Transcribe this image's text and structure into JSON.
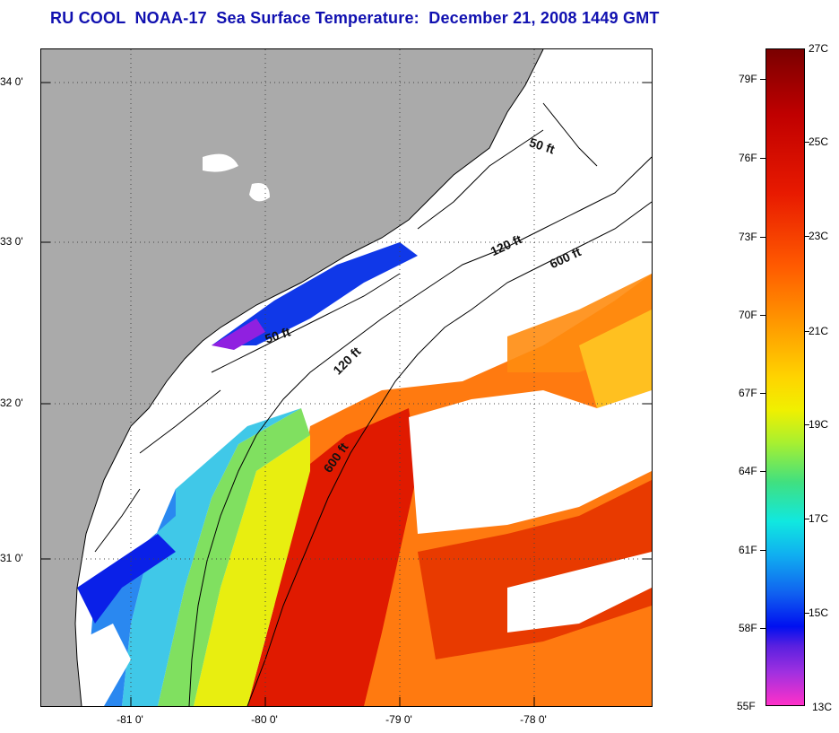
{
  "title": "RU COOL  NOAA-17  Sea Surface Temperature:  December 21, 2008 1449 GMT",
  "axes": {
    "latitude_labels": [
      "34 0'",
      "33 0'",
      "32 0'",
      "31 0'"
    ],
    "longitude_labels": [
      "-81 0'",
      "-80 0'",
      "-79 0'",
      "-78 0'"
    ]
  },
  "isobath_labels": {
    "fifty_north": "50 ft",
    "fifty_south": "50 ft",
    "onetwenty_north": "120 ft",
    "onetwenty_south": "120 ft",
    "sixhundred_north": "600 ft",
    "sixhundred_south": "600 ft"
  },
  "colorbar": {
    "fahrenheit": [
      "79F",
      "76F",
      "73F",
      "70F",
      "67F",
      "64F",
      "61F",
      "58F",
      "55F"
    ],
    "celsius": [
      "27C",
      "25C",
      "23C",
      "21C",
      "19C",
      "17C",
      "15C",
      "13C"
    ]
  },
  "colors": {
    "land": "#aaaaaa",
    "title": "#1010b0",
    "gulf_stream": "#e01a00",
    "shelf_cold": "#1060f0"
  }
}
